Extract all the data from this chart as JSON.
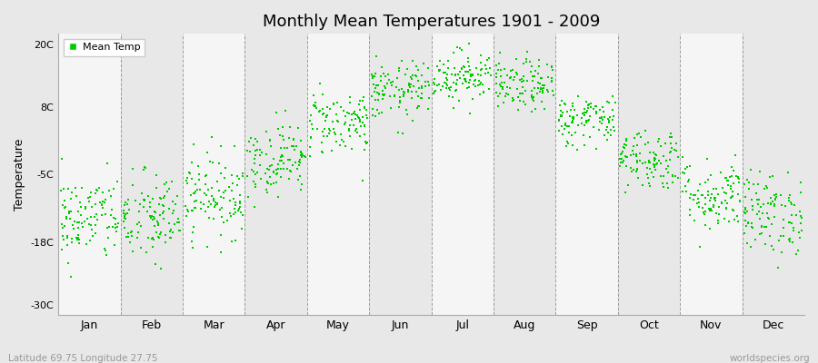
{
  "title": "Monthly Mean Temperatures 1901 - 2009",
  "ylabel": "Temperature",
  "subtitle_left": "Latitude 69.75 Longitude 27.75",
  "subtitle_right": "worldspecies.org",
  "dot_color": "#00cc00",
  "bg_color": "#e8e8e8",
  "plot_bg_odd": "#e8e8e8",
  "plot_bg_even": "#f5f5f5",
  "yticks": [
    -30,
    -18,
    -5,
    8,
    20
  ],
  "ytick_labels": [
    "-30C",
    "-18C",
    "-5C",
    "8C",
    "20C"
  ],
  "ylim": [
    -32,
    22
  ],
  "months": [
    "Jan",
    "Feb",
    "Mar",
    "Apr",
    "May",
    "Jun",
    "Jul",
    "Aug",
    "Sep",
    "Oct",
    "Nov",
    "Dec"
  ],
  "monthly_means": [
    -13.5,
    -13.5,
    -9.0,
    -2.0,
    5.0,
    11.0,
    14.0,
    12.0,
    5.5,
    -2.0,
    -9.0,
    -12.5
  ],
  "monthly_stds": [
    4.2,
    4.5,
    4.0,
    3.5,
    3.2,
    2.8,
    2.5,
    2.5,
    2.5,
    3.0,
    3.5,
    4.0
  ],
  "n_years": 109,
  "random_seed": 42,
  "figsize": [
    9.0,
    4.0
  ],
  "dpi": 100
}
